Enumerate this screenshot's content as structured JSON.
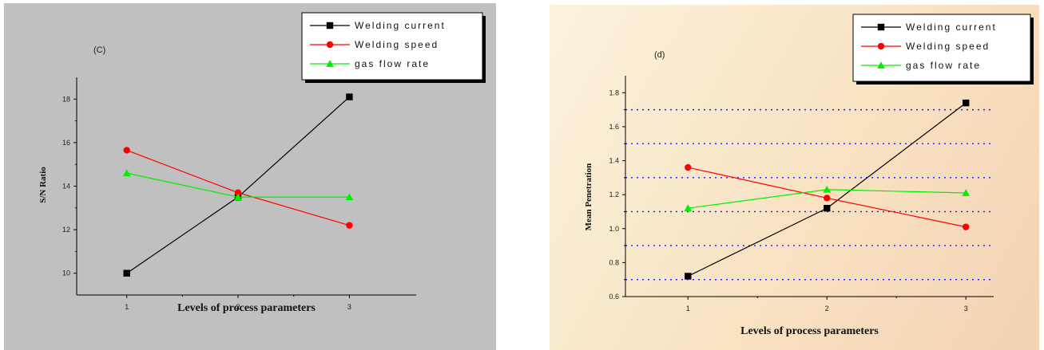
{
  "chart_data": [
    {
      "type": "line",
      "panel_label": "(C)",
      "xlabel": "Levels of process parameters",
      "ylabel": "S/N Ratio",
      "x": [
        1,
        2,
        3
      ],
      "xlim": [
        0.55,
        3.6
      ],
      "ylim": [
        9.0,
        19.0
      ],
      "yticks": [
        10,
        12,
        14,
        16,
        18
      ],
      "grid": false,
      "legend_position": "top-right",
      "series": [
        {
          "name": "Welding current",
          "values": [
            10.0,
            13.5,
            18.1
          ],
          "color": "#000000",
          "marker": "square"
        },
        {
          "name": "Welding speed",
          "values": [
            15.65,
            13.7,
            12.2
          ],
          "color": "#ff0000",
          "marker": "circle"
        },
        {
          "name": "gas flow rate",
          "values": [
            14.6,
            13.5,
            13.5
          ],
          "color": "#00ee00",
          "marker": "triangle"
        }
      ]
    },
    {
      "type": "line",
      "panel_label": "(d)",
      "xlabel": "Levels of process parameters",
      "ylabel": "Mean Penetration",
      "x": [
        1,
        2,
        3
      ],
      "xlim": [
        0.55,
        3.2
      ],
      "ylim": [
        0.6,
        1.9
      ],
      "yticks": [
        0.6,
        0.8,
        1.0,
        1.2,
        1.4,
        1.6,
        1.8
      ],
      "grid": true,
      "grid_lines": [
        0.7,
        0.9,
        1.1,
        1.3,
        1.5,
        1.7
      ],
      "legend_position": "top-right",
      "series": [
        {
          "name": "Welding current",
          "values": [
            0.72,
            1.12,
            1.74
          ],
          "color": "#000000",
          "marker": "square"
        },
        {
          "name": "Welding speed",
          "values": [
            1.36,
            1.18,
            1.01
          ],
          "color": "#ff0000",
          "marker": "circle"
        },
        {
          "name": "gas flow rate",
          "values": [
            1.12,
            1.23,
            1.21
          ],
          "color": "#00ee00",
          "marker": "triangle"
        }
      ]
    }
  ]
}
